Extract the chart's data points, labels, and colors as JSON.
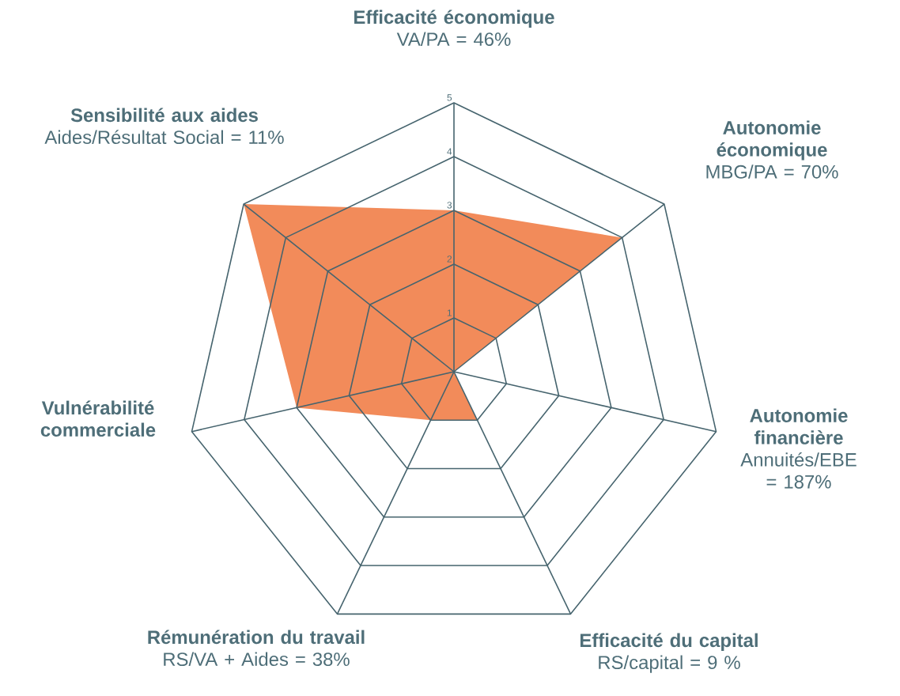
{
  "chart_data": {
    "type": "radar",
    "categories": [
      "Efficacité économique",
      "Autonomie économique",
      "Autonomie financière",
      "Efficacité du capital",
      "Rémunération du travail",
      "Vulnérabilité commerciale",
      "Sensibilité aux aides"
    ],
    "series": [
      {
        "color": "#f28b5a",
        "values": [
          3,
          4,
          0,
          1,
          1,
          3,
          5
        ]
      }
    ],
    "ylim": [
      0,
      5
    ],
    "yticks": [
      1,
      2,
      3,
      4,
      5
    ],
    "grid": true,
    "annotations": [
      {
        "text": "VA/PA = 46%",
        "x": "Efficacité économique"
      },
      {
        "text": "MBG/PA = 70%",
        "x": "Autonomie économique"
      },
      {
        "text": "Annuités/EBE = 187%",
        "x": "Autonomie financière"
      },
      {
        "text": "RS/capital = 9 %",
        "x": "Efficacité du capital"
      },
      {
        "text": "RS/VA + Aides = 38%",
        "x": "Rémunération du travail"
      },
      {
        "text": "Aides/Résultat Social = 11%",
        "x": "Sensibilité aux aides"
      }
    ]
  }
}
